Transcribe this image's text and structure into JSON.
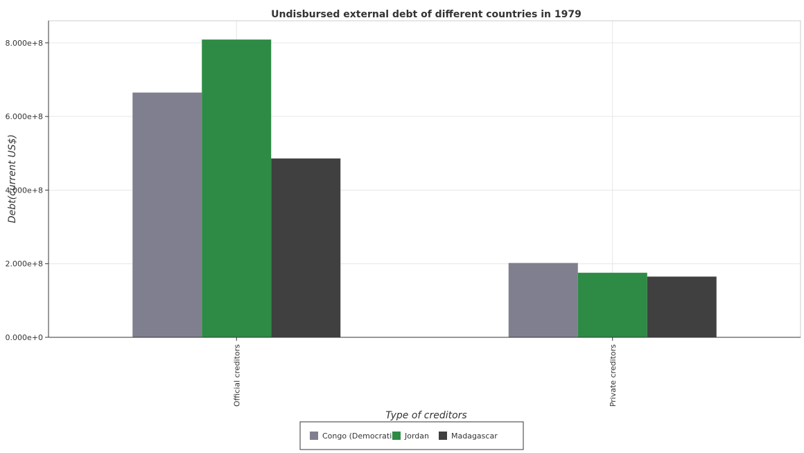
{
  "chart_data": {
    "type": "bar",
    "title": "Undisbursed external debt of different countries in 1979",
    "xlabel": "Type of creditors",
    "ylabel": "Debt(current US$)",
    "categories": [
      "Official creditors",
      "Private creditors"
    ],
    "series": [
      {
        "name": "Congo (Democratic)",
        "color": "#7f7f8f",
        "values": [
          665000000,
          202000000
        ]
      },
      {
        "name": "Jordan",
        "color": "#2e8b45",
        "values": [
          809000000,
          175500000
        ]
      },
      {
        "name": "Madagascar",
        "color": "#404040",
        "values": [
          486000000,
          165000000
        ]
      }
    ],
    "ylim": [
      0,
      860000000
    ],
    "yticks": [
      0,
      200000000,
      400000000,
      600000000,
      800000000
    ],
    "ytick_labels": [
      "0.000e+0",
      "2.000e+8",
      "4.000e+8",
      "6.000e+8",
      "8.000e+8"
    ],
    "grid": true,
    "legend_position": "bottom-center"
  }
}
